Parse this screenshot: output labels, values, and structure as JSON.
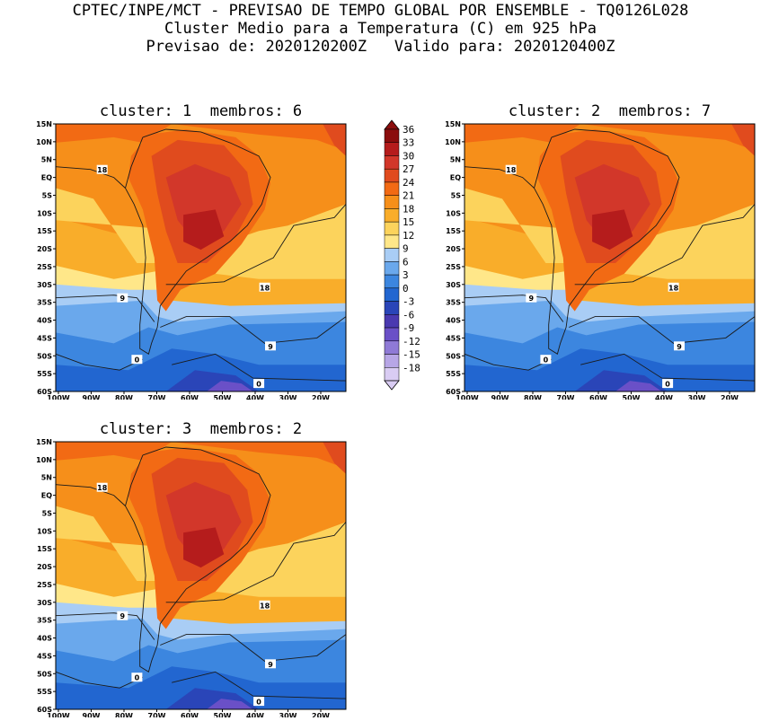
{
  "title": {
    "line1": "CPTEC/INPE/MCT - PREVISAO DE TEMPO GLOBAL POR ENSEMBLE - TQ0126L028",
    "line2": "Cluster Medio para a Temperatura (C) em 925 hPa",
    "line3": "Previsao de: 2020120200Z   Valido para: 2020120400Z"
  },
  "lat_ticks": [
    "15N",
    "10N",
    "5N",
    "EQ",
    "5S",
    "10S",
    "15S",
    "20S",
    "25S",
    "30S",
    "35S",
    "40S",
    "45S",
    "50S",
    "55S",
    "60S"
  ],
  "lon_ticks": [
    "100W",
    "90W",
    "80W",
    "70W",
    "60W",
    "50W",
    "40W",
    "30W",
    "20W"
  ],
  "colorbar": {
    "levels": [
      "36",
      "33",
      "30",
      "27",
      "24",
      "21",
      "18",
      "15",
      "12",
      "9",
      "6",
      "3",
      "0",
      "-3",
      "-6",
      "-9",
      "-12",
      "-15",
      "-18"
    ],
    "colors": [
      "#8b0d0d",
      "#b51c1c",
      "#d2372a",
      "#e04b1e",
      "#f26a14",
      "#f68f1a",
      "#f9ad2a",
      "#fcd35c",
      "#ffe789",
      "#a9cdf5",
      "#6aa8ec",
      "#3c86df",
      "#2266d0",
      "#2a45b8",
      "#4a39b0",
      "#6a50c7",
      "#8f7ad6",
      "#b7a6e6",
      "#d9ccf3"
    ]
  },
  "panels": [
    {
      "title": "cluster: 1  membros: 6",
      "contour_labels": [
        "18",
        "18",
        "9",
        "9",
        "0",
        "0"
      ]
    },
    {
      "title": "cluster: 2  membros: 7",
      "contour_labels": [
        "18",
        "18",
        "9",
        "9",
        "0",
        "0"
      ]
    },
    {
      "title": "cluster: 3  membros: 2",
      "contour_labels": [
        "18",
        "18",
        "9",
        "9",
        "0",
        "0"
      ]
    }
  ]
}
